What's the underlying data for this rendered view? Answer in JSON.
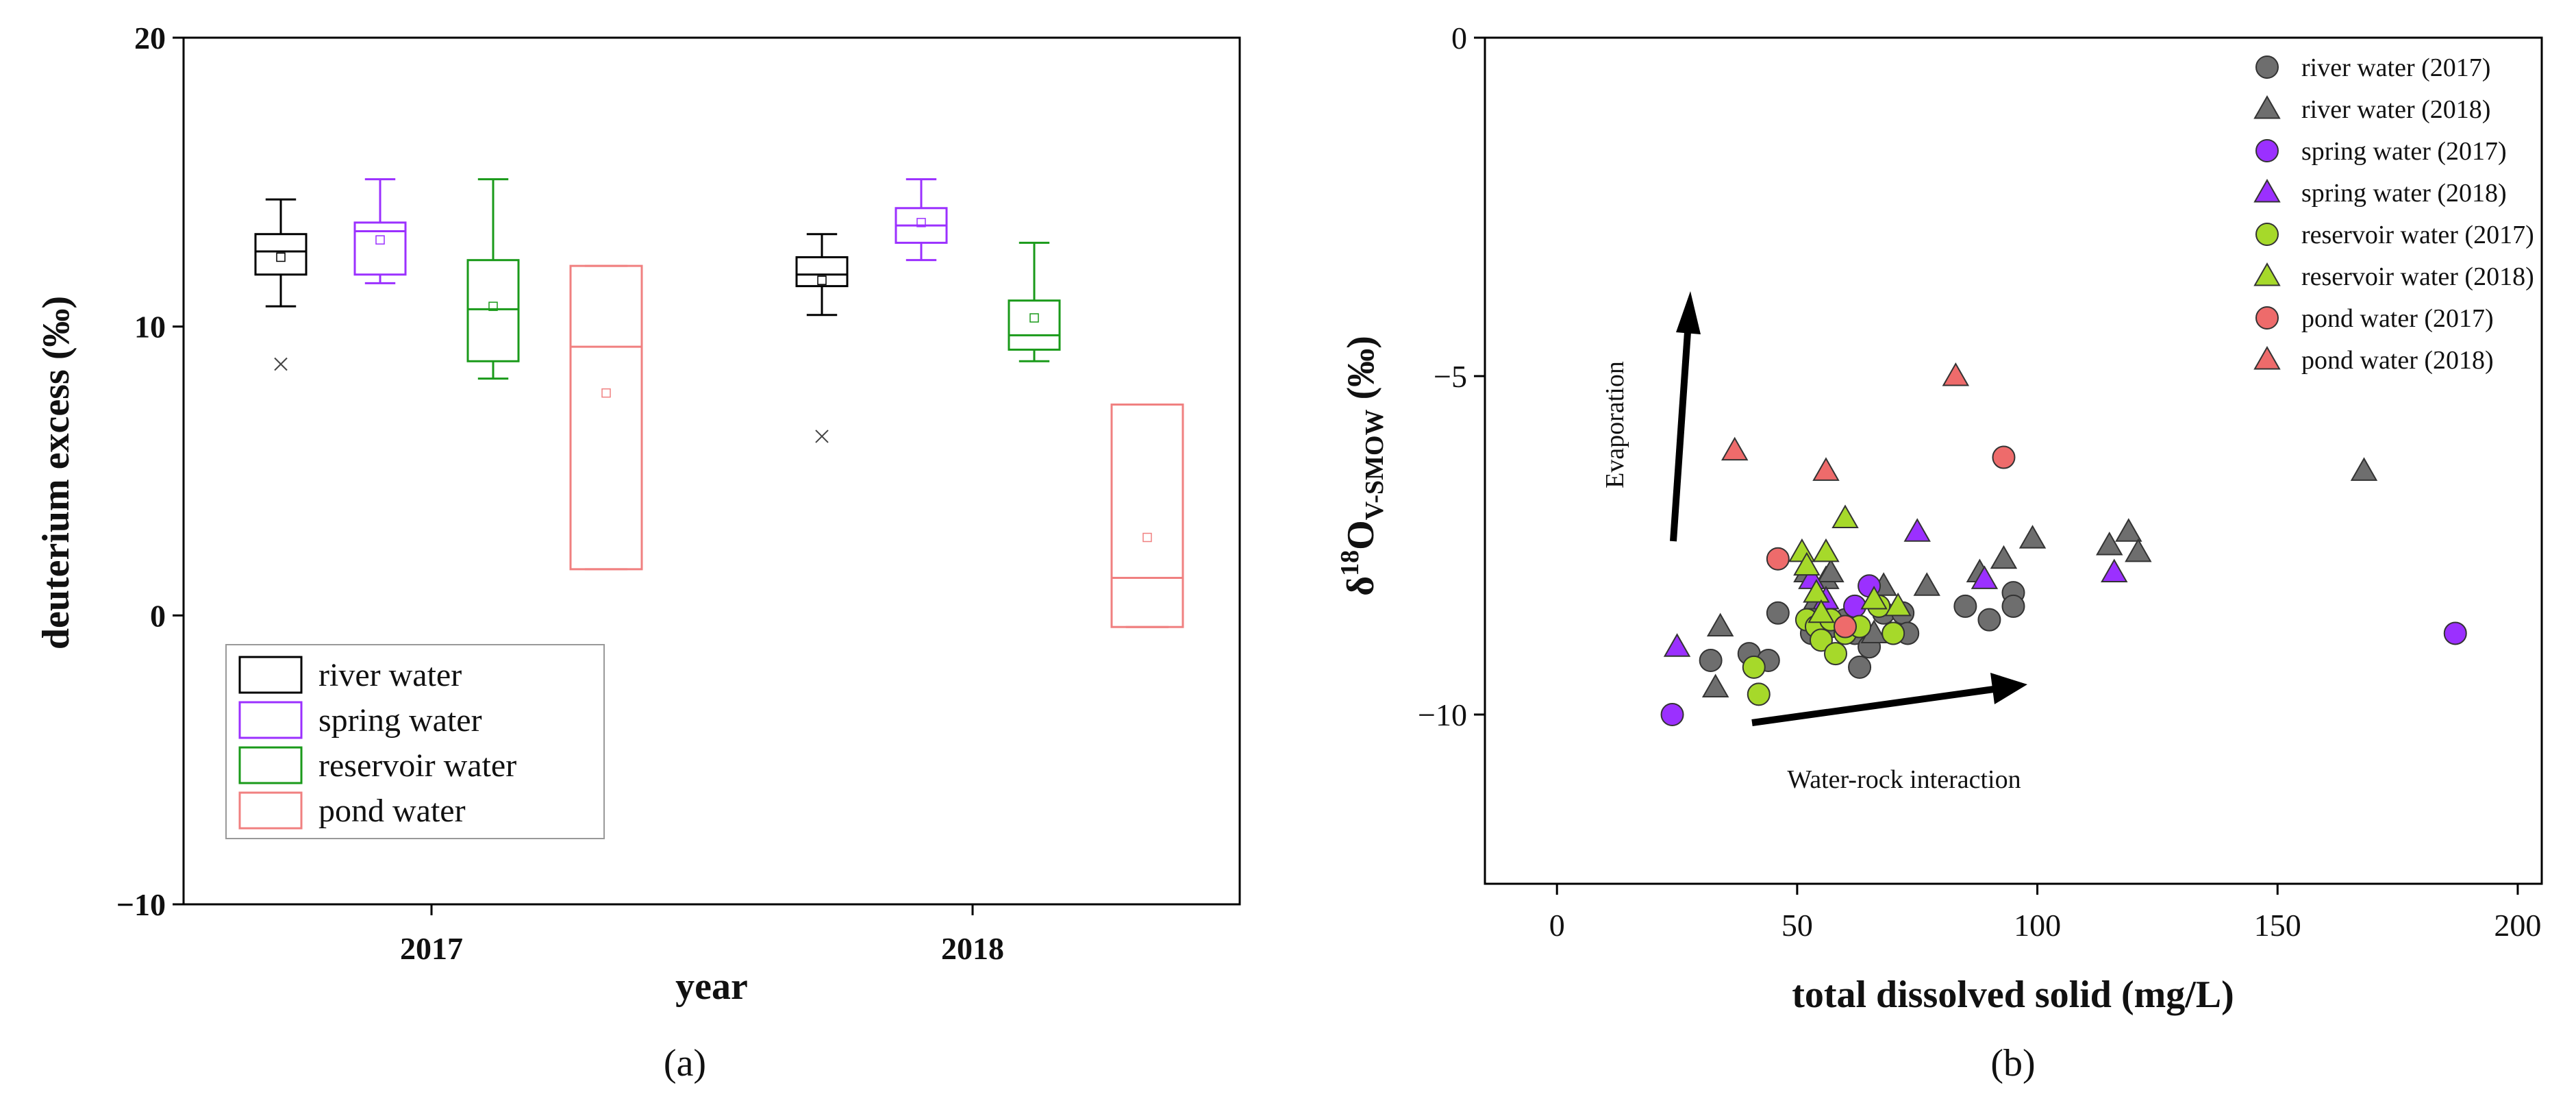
{
  "chart_data": [
    {
      "type": "box",
      "panel_label": "(a)",
      "xlabel": "year",
      "ylabel": "deuterium excess (‰)",
      "categories": [
        "2017",
        "2018"
      ],
      "ylim": [
        -10,
        20
      ],
      "yticks": [
        "−10",
        "0",
        "10",
        "20"
      ],
      "legend_position": "bottom-left",
      "series": [
        {
          "name": "river water",
          "color": "#000000",
          "boxes": [
            {
              "year": "2017",
              "min": 10.7,
              "q1": 11.8,
              "median": 12.6,
              "q3": 13.2,
              "max": 14.4,
              "mean": 12.4,
              "outliers": [
                8.7
              ]
            },
            {
              "year": "2018",
              "min": 10.4,
              "q1": 11.4,
              "median": 11.8,
              "q3": 12.4,
              "max": 13.2,
              "mean": 11.6,
              "outliers": [
                6.2
              ]
            }
          ]
        },
        {
          "name": "spring water",
          "color": "#9b30ff",
          "boxes": [
            {
              "year": "2017",
              "min": 11.5,
              "q1": 11.8,
              "median": 13.3,
              "q3": 13.6,
              "max": 15.1,
              "mean": 13.0,
              "outliers": []
            },
            {
              "year": "2018",
              "min": 12.3,
              "q1": 12.9,
              "median": 13.5,
              "q3": 14.1,
              "max": 15.1,
              "mean": 13.6,
              "outliers": []
            }
          ]
        },
        {
          "name": "reservoir water",
          "color": "#1a9a1a",
          "boxes": [
            {
              "year": "2017",
              "min": 8.2,
              "q1": 8.8,
              "median": 10.6,
              "q3": 12.3,
              "max": 15.1,
              "mean": 10.7,
              "outliers": []
            },
            {
              "year": "2018",
              "min": 8.8,
              "q1": 9.2,
              "median": 9.7,
              "q3": 10.9,
              "max": 12.9,
              "mean": 10.3,
              "outliers": []
            }
          ]
        },
        {
          "name": "pond water",
          "color": "#f08080",
          "boxes": [
            {
              "year": "2017",
              "min": 1.6,
              "q1": 1.6,
              "median": 9.3,
              "q3": 12.1,
              "max": 12.1,
              "mean": 7.7,
              "outliers": []
            },
            {
              "year": "2018",
              "min": -0.4,
              "q1": -0.4,
              "median": 1.3,
              "q3": 7.3,
              "max": 7.3,
              "mean": 2.7,
              "outliers": []
            }
          ]
        }
      ]
    },
    {
      "type": "scatter",
      "panel_label": "(b)",
      "xlabel": "total dissolved solid (mg/L)",
      "ylabel_main": "δ",
      "ylabel_sup": "18",
      "ylabel_o": "O",
      "ylabel_sub": "V-SMOW",
      "ylabel_unit": " (‰)",
      "xlim": [
        -15,
        205
      ],
      "ylim": [
        -12.5,
        0
      ],
      "xticks": [
        0,
        50,
        100,
        150,
        200
      ],
      "yticks": [
        {
          "value": 0,
          "label": "0"
        },
        {
          "value": -5,
          "label": "−5"
        },
        {
          "value": -10,
          "label": "−10"
        }
      ],
      "legend_position": "top-right",
      "annotations": [
        {
          "text": "Evaporation",
          "direction": "up"
        },
        {
          "text": "Water-rock interaction",
          "direction": "right"
        }
      ],
      "series": [
        {
          "name": "river water (2017)",
          "marker": "circle",
          "color": "#6e6e6e",
          "points": [
            [
              32,
              -9.2
            ],
            [
              40,
              -9.1
            ],
            [
              44,
              -9.2
            ],
            [
              46,
              -8.5
            ],
            [
              53,
              -8.8
            ],
            [
              55,
              -8.4
            ],
            [
              57,
              -8.7
            ],
            [
              60,
              -8.6
            ],
            [
              62,
              -8.8
            ],
            [
              63,
              -9.3
            ],
            [
              65,
              -9.0
            ],
            [
              68,
              -8.5
            ],
            [
              70,
              -8.8
            ],
            [
              72,
              -8.5
            ],
            [
              73,
              -8.8
            ],
            [
              85,
              -8.4
            ],
            [
              90,
              -8.6
            ],
            [
              95,
              -8.2
            ],
            [
              95,
              -8.4
            ]
          ]
        },
        {
          "name": "river water (2018)",
          "marker": "triangle",
          "color": "#6e6e6e",
          "points": [
            [
              33,
              -9.6
            ],
            [
              34,
              -8.7
            ],
            [
              52,
              -7.9
            ],
            [
              54,
              -8.3
            ],
            [
              56,
              -8.0
            ],
            [
              57,
              -7.9
            ],
            [
              66,
              -8.8
            ],
            [
              68,
              -8.1
            ],
            [
              77,
              -8.1
            ],
            [
              88,
              -7.9
            ],
            [
              93,
              -7.7
            ],
            [
              99,
              -7.4
            ],
            [
              115,
              -7.5
            ],
            [
              119,
              -7.3
            ],
            [
              121,
              -7.6
            ],
            [
              168,
              -6.4
            ]
          ]
        },
        {
          "name": "spring water (2017)",
          "marker": "circle",
          "color": "#9b30ff",
          "points": [
            [
              24,
              -10.0
            ],
            [
              62,
              -8.4
            ],
            [
              65,
              -8.1
            ],
            [
              187,
              -8.8
            ]
          ]
        },
        {
          "name": "spring water (2018)",
          "marker": "triangle",
          "color": "#9b30ff",
          "points": [
            [
              25,
              -9.0
            ],
            [
              53,
              -8.0
            ],
            [
              56,
              -8.3
            ],
            [
              75,
              -7.3
            ],
            [
              89,
              -8.0
            ],
            [
              116,
              -7.9
            ]
          ]
        },
        {
          "name": "reservoir water (2017)",
          "marker": "circle",
          "color": "#a6d92a",
          "points": [
            [
              41,
              -9.3
            ],
            [
              42,
              -9.7
            ],
            [
              52,
              -8.6
            ],
            [
              54,
              -8.7
            ],
            [
              55,
              -8.9
            ],
            [
              57,
              -8.6
            ],
            [
              58,
              -9.1
            ],
            [
              60,
              -8.8
            ],
            [
              63,
              -8.7
            ],
            [
              67,
              -8.4
            ],
            [
              70,
              -8.8
            ]
          ]
        },
        {
          "name": "reservoir water (2018)",
          "marker": "triangle",
          "color": "#a6d92a",
          "points": [
            [
              51,
              -7.6
            ],
            [
              52,
              -7.8
            ],
            [
              54,
              -8.2
            ],
            [
              55,
              -8.5
            ],
            [
              56,
              -7.6
            ],
            [
              60,
              -7.1
            ],
            [
              66,
              -8.3
            ],
            [
              71,
              -8.4
            ]
          ]
        },
        {
          "name": "pond water (2017)",
          "marker": "circle",
          "color": "#ee6b6b",
          "points": [
            [
              46,
              -7.7
            ],
            [
              60,
              -8.7
            ],
            [
              93,
              -6.2
            ]
          ]
        },
        {
          "name": "pond water (2018)",
          "marker": "triangle",
          "color": "#ee6b6b",
          "points": [
            [
              37,
              -6.1
            ],
            [
              56,
              -6.4
            ],
            [
              83,
              -5.0
            ]
          ]
        }
      ]
    }
  ]
}
